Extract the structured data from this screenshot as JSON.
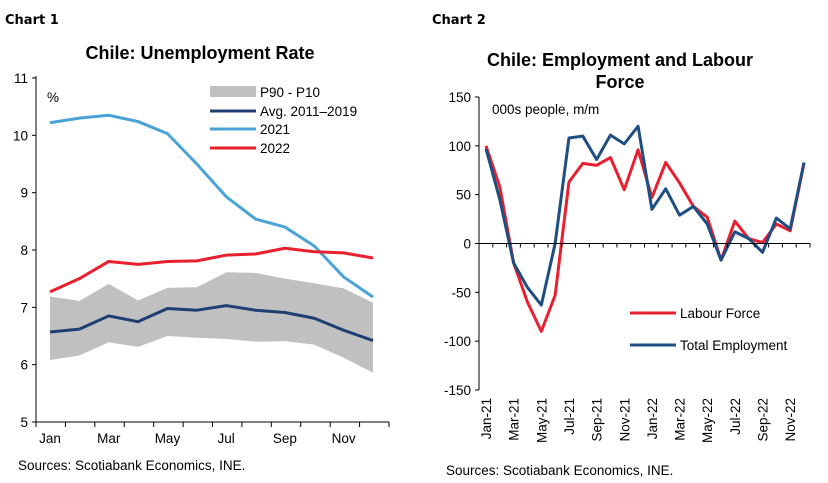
{
  "chart_data": [
    {
      "header": "Chart 1",
      "type": "line",
      "title": "Chile: Unemployment Rate",
      "unit_label": "%",
      "source": "Sources: Scotiabank Economics, INE.",
      "categories": [
        "Jan",
        "Feb",
        "Mar",
        "Apr",
        "May",
        "Jun",
        "Jul",
        "Aug",
        "Sep",
        "Oct",
        "Nov",
        "Dec"
      ],
      "tick_labels": [
        "Jan",
        "",
        "Mar",
        "",
        "May",
        "",
        "Jul",
        "",
        "Sep",
        "",
        "Nov",
        ""
      ],
      "ylim": [
        5,
        11
      ],
      "yticks": [
        5,
        6,
        7,
        8,
        9,
        10,
        11
      ],
      "legend_placement": "top-right",
      "band": {
        "name": "P90 - P10",
        "color": "#c0c0c0",
        "upper": [
          7.19,
          7.11,
          7.41,
          7.12,
          7.34,
          7.35,
          7.61,
          7.6,
          7.5,
          7.42,
          7.33,
          7.08
        ],
        "lower": [
          6.08,
          6.16,
          6.39,
          6.31,
          6.5,
          6.47,
          6.45,
          6.4,
          6.41,
          6.35,
          6.12,
          5.86
        ]
      },
      "series": [
        {
          "name": "Avg. 2011–2019",
          "color": "#1f3f73",
          "values": [
            6.57,
            6.62,
            6.85,
            6.75,
            6.98,
            6.95,
            7.03,
            6.95,
            6.91,
            6.81,
            6.6,
            6.42
          ]
        },
        {
          "name": "2021",
          "color": "#4aa3d6",
          "values": [
            10.22,
            10.3,
            10.35,
            10.24,
            10.03,
            9.5,
            8.93,
            8.54,
            8.4,
            8.07,
            7.53,
            7.18
          ]
        },
        {
          "name": "2022",
          "color": "#e8202f",
          "values": [
            7.27,
            7.5,
            7.8,
            7.75,
            7.8,
            7.81,
            7.91,
            7.93,
            8.03,
            7.97,
            7.95,
            7.86
          ]
        }
      ]
    },
    {
      "header": "Chart 2",
      "type": "line",
      "title": "Chile: Employment and Labour Force",
      "unit_label": "000s people, m/m",
      "source": "Sources: Scotiabank Economics, INE.",
      "categories": [
        "Jan-21",
        "Feb-21",
        "Mar-21",
        "Apr-21",
        "May-21",
        "Jun-21",
        "Jul-21",
        "Aug-21",
        "Sep-21",
        "Oct-21",
        "Nov-21",
        "Dec-21",
        "Jan-22",
        "Feb-22",
        "Mar-22",
        "Apr-22",
        "May-22",
        "Jun-22",
        "Jul-22",
        "Aug-22",
        "Sep-22",
        "Oct-22",
        "Nov-22",
        "Dec-22"
      ],
      "tick_labels": [
        "Jan-21",
        "",
        "Mar-21",
        "",
        "May-21",
        "",
        "Jul-21",
        "",
        "Sep-21",
        "",
        "Nov-21",
        "",
        "Jan-22",
        "",
        "Mar-22",
        "",
        "May-22",
        "",
        "Jul-22",
        "",
        "Sep-22",
        "",
        "Nov-22",
        ""
      ],
      "ylim": [
        -150,
        150
      ],
      "yticks": [
        -150,
        -100,
        -50,
        0,
        50,
        100,
        150
      ],
      "legend_placement": "bottom-right",
      "series": [
        {
          "name": "Labour Force",
          "color": "#e8202f",
          "values": [
            100,
            58,
            -20,
            -60,
            -90,
            -53,
            63,
            82,
            80,
            88,
            55,
            96,
            47,
            83,
            62,
            38,
            27,
            -17,
            23,
            5,
            1,
            20,
            13,
            82
          ]
        },
        {
          "name": "Total Employment",
          "color": "#1f4e82",
          "values": [
            97,
            45,
            -20,
            -45,
            -63,
            0,
            108,
            110,
            86,
            111,
            102,
            120,
            35,
            56,
            29,
            38,
            20,
            -17,
            12,
            5,
            -9,
            26,
            15,
            83
          ]
        }
      ]
    }
  ]
}
